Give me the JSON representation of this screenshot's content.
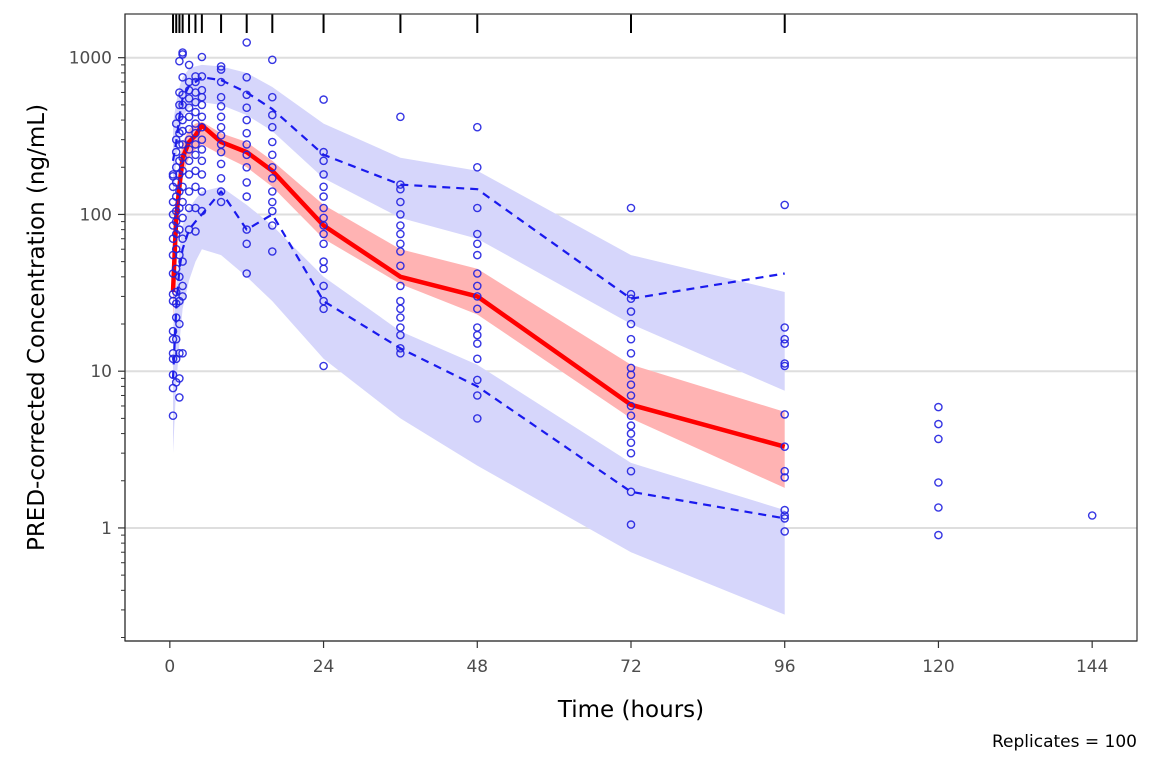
{
  "chart_data": {
    "type": "scatter",
    "title": "",
    "xlabel": "Time (hours)",
    "ylabel": "PRED-corrected Concentration (ng/mL)",
    "caption": "Replicates = 100",
    "x_scale": "linear",
    "y_scale": "log10",
    "xlim": [
      -7,
      151
    ],
    "ylim": [
      0.19,
      1900
    ],
    "x_ticks": [
      0,
      24,
      48,
      72,
      96,
      120,
      144
    ],
    "x_tick_labels": [
      "0",
      "24",
      "48",
      "72",
      "96",
      "120",
      "144"
    ],
    "y_ticks": [
      1,
      10,
      100,
      1000
    ],
    "y_tick_labels": [
      "1",
      "10",
      "100",
      "1000"
    ],
    "grid": "horizontal major lines only",
    "legend": "none",
    "colors": {
      "observed_points": "#2020e0",
      "median_line": "#ff0000",
      "median_band": "#ffb3b3",
      "percentile_lines": "#1a1aee",
      "percentile_bands": "#d6d6fb",
      "grid": "#dedede"
    },
    "bin_times": [
      0.5,
      1,
      1.5,
      2,
      3,
      4,
      5,
      8,
      12,
      16,
      24,
      36,
      48,
      72,
      96
    ],
    "observed_median": {
      "x": [
        0.5,
        1,
        1.5,
        2,
        3,
        4,
        5,
        8,
        12,
        16,
        24,
        36,
        48,
        72,
        96
      ],
      "y": [
        32,
        95,
        150,
        230,
        290,
        320,
        370,
        290,
        250,
        190,
        85,
        40,
        30,
        6.1,
        3.3
      ]
    },
    "observed_p95": {
      "x": [
        0.5,
        1,
        1.5,
        2,
        3,
        4,
        5,
        8,
        12,
        16,
        24,
        36,
        48,
        72,
        96
      ],
      "y": [
        220,
        290,
        420,
        550,
        660,
        700,
        750,
        720,
        600,
        470,
        240,
        155,
        145,
        29,
        42
      ]
    },
    "observed_p05": {
      "x": [
        0.5,
        1,
        1.5,
        2,
        3,
        4,
        5,
        8,
        12,
        16,
        24,
        36,
        48,
        72,
        96
      ],
      "y": [
        9,
        25,
        45,
        60,
        80,
        90,
        100,
        140,
        80,
        100,
        28,
        14,
        8,
        1.7,
        1.15
      ]
    },
    "sim_median_band": {
      "x": [
        0.5,
        1,
        1.5,
        2,
        3,
        4,
        5,
        8,
        12,
        16,
        24,
        36,
        48,
        72,
        96
      ],
      "lower": [
        20,
        65,
        120,
        180,
        230,
        260,
        280,
        240,
        200,
        150,
        70,
        36,
        23,
        5.0,
        1.8
      ],
      "upper": [
        45,
        130,
        210,
        290,
        350,
        380,
        390,
        330,
        290,
        220,
        115,
        60,
        45,
        11,
        5.5
      ]
    },
    "sim_p95_band": {
      "x": [
        0.5,
        1,
        1.5,
        2,
        3,
        4,
        5,
        8,
        12,
        16,
        24,
        36,
        48,
        72,
        96
      ],
      "lower": [
        120,
        220,
        320,
        420,
        480,
        500,
        520,
        500,
        430,
        340,
        170,
        95,
        70,
        20,
        7.5
      ],
      "upper": [
        380,
        520,
        650,
        750,
        850,
        880,
        900,
        880,
        800,
        650,
        380,
        230,
        190,
        55,
        32
      ]
    },
    "sim_p05_band": {
      "x": [
        0.5,
        1,
        1.5,
        2,
        3,
        4,
        5,
        8,
        12,
        16,
        24,
        36,
        48,
        72,
        96
      ],
      "lower": [
        3,
        8,
        15,
        25,
        38,
        50,
        60,
        55,
        40,
        28,
        12,
        5,
        2.5,
        0.7,
        0.28
      ],
      "upper": [
        18,
        35,
        60,
        85,
        110,
        125,
        140,
        150,
        115,
        85,
        40,
        18,
        11,
        2.6,
        1.3
      ]
    },
    "observed_points": [
      [
        0.5,
        5.2
      ],
      [
        0.5,
        7.8
      ],
      [
        0.5,
        9.5
      ],
      [
        0.5,
        12
      ],
      [
        0.5,
        13
      ],
      [
        0.5,
        16
      ],
      [
        0.5,
        18
      ],
      [
        0.5,
        28
      ],
      [
        0.5,
        31
      ],
      [
        0.5,
        42
      ],
      [
        0.5,
        55
      ],
      [
        0.5,
        70
      ],
      [
        0.5,
        85
      ],
      [
        0.5,
        100
      ],
      [
        0.5,
        120
      ],
      [
        0.5,
        150
      ],
      [
        0.5,
        175
      ],
      [
        0.5,
        180
      ],
      [
        1,
        8.5
      ],
      [
        1,
        12
      ],
      [
        1,
        16
      ],
      [
        1,
        22
      ],
      [
        1,
        27
      ],
      [
        1,
        32
      ],
      [
        1,
        45
      ],
      [
        1,
        60
      ],
      [
        1,
        75
      ],
      [
        1,
        90
      ],
      [
        1,
        105
      ],
      [
        1,
        130
      ],
      [
        1,
        160
      ],
      [
        1,
        200
      ],
      [
        1,
        250
      ],
      [
        1,
        300
      ],
      [
        1,
        380
      ],
      [
        1.5,
        6.8
      ],
      [
        1.5,
        9
      ],
      [
        1.5,
        13
      ],
      [
        1.5,
        20
      ],
      [
        1.5,
        28
      ],
      [
        1.5,
        40
      ],
      [
        1.5,
        55
      ],
      [
        1.5,
        80
      ],
      [
        1.5,
        110
      ],
      [
        1.5,
        140
      ],
      [
        1.5,
        180
      ],
      [
        1.5,
        220
      ],
      [
        1.5,
        280
      ],
      [
        1.5,
        330
      ],
      [
        1.5,
        420
      ],
      [
        1.5,
        500
      ],
      [
        1.5,
        600
      ],
      [
        1.5,
        950
      ],
      [
        2,
        13
      ],
      [
        2,
        30
      ],
      [
        2,
        35
      ],
      [
        2,
        50
      ],
      [
        2,
        70
      ],
      [
        2,
        95
      ],
      [
        2,
        120
      ],
      [
        2,
        150
      ],
      [
        2,
        190
      ],
      [
        2,
        230
      ],
      [
        2,
        280
      ],
      [
        2,
        340
      ],
      [
        2,
        400
      ],
      [
        2,
        500
      ],
      [
        2,
        580
      ],
      [
        2,
        750
      ],
      [
        2,
        1050
      ],
      [
        2,
        1080
      ],
      [
        3,
        80
      ],
      [
        3,
        110
      ],
      [
        3,
        140
      ],
      [
        3,
        180
      ],
      [
        3,
        220
      ],
      [
        3,
        260
      ],
      [
        3,
        300
      ],
      [
        3,
        350
      ],
      [
        3,
        420
      ],
      [
        3,
        480
      ],
      [
        3,
        550
      ],
      [
        3,
        620
      ],
      [
        3,
        700
      ],
      [
        3,
        900
      ],
      [
        4,
        78
      ],
      [
        4,
        110
      ],
      [
        4,
        150
      ],
      [
        4,
        190
      ],
      [
        4,
        240
      ],
      [
        4,
        280
      ],
      [
        4,
        330
      ],
      [
        4,
        380
      ],
      [
        4,
        450
      ],
      [
        4,
        520
      ],
      [
        4,
        600
      ],
      [
        4,
        700
      ],
      [
        4,
        760
      ],
      [
        5,
        105
      ],
      [
        5,
        140
      ],
      [
        5,
        180
      ],
      [
        5,
        220
      ],
      [
        5,
        260
      ],
      [
        5,
        300
      ],
      [
        5,
        360
      ],
      [
        5,
        420
      ],
      [
        5,
        500
      ],
      [
        5,
        560
      ],
      [
        5,
        620
      ],
      [
        5,
        760
      ],
      [
        5,
        1010
      ],
      [
        8,
        120
      ],
      [
        8,
        140
      ],
      [
        8,
        170
      ],
      [
        8,
        210
      ],
      [
        8,
        250
      ],
      [
        8,
        280
      ],
      [
        8,
        320
      ],
      [
        8,
        360
      ],
      [
        8,
        420
      ],
      [
        8,
        490
      ],
      [
        8,
        560
      ],
      [
        8,
        700
      ],
      [
        8,
        840
      ],
      [
        8,
        880
      ],
      [
        12,
        42
      ],
      [
        12,
        65
      ],
      [
        12,
        80
      ],
      [
        12,
        130
      ],
      [
        12,
        160
      ],
      [
        12,
        200
      ],
      [
        12,
        240
      ],
      [
        12,
        280
      ],
      [
        12,
        330
      ],
      [
        12,
        400
      ],
      [
        12,
        480
      ],
      [
        12,
        580
      ],
      [
        12,
        750
      ],
      [
        12,
        1250
      ],
      [
        16,
        58
      ],
      [
        16,
        85
      ],
      [
        16,
        105
      ],
      [
        16,
        120
      ],
      [
        16,
        140
      ],
      [
        16,
        170
      ],
      [
        16,
        200
      ],
      [
        16,
        240
      ],
      [
        16,
        290
      ],
      [
        16,
        360
      ],
      [
        16,
        430
      ],
      [
        16,
        560
      ],
      [
        16,
        970
      ],
      [
        24,
        10.8
      ],
      [
        24,
        25
      ],
      [
        24,
        28
      ],
      [
        24,
        35
      ],
      [
        24,
        45
      ],
      [
        24,
        50
      ],
      [
        24,
        65
      ],
      [
        24,
        75
      ],
      [
        24,
        85
      ],
      [
        24,
        95
      ],
      [
        24,
        110
      ],
      [
        24,
        130
      ],
      [
        24,
        150
      ],
      [
        24,
        180
      ],
      [
        24,
        220
      ],
      [
        24,
        250
      ],
      [
        24,
        540
      ],
      [
        36,
        13
      ],
      [
        36,
        14
      ],
      [
        36,
        17
      ],
      [
        36,
        19
      ],
      [
        36,
        22
      ],
      [
        36,
        25
      ],
      [
        36,
        28
      ],
      [
        36,
        35
      ],
      [
        36,
        47
      ],
      [
        36,
        58
      ],
      [
        36,
        65
      ],
      [
        36,
        75
      ],
      [
        36,
        85
      ],
      [
        36,
        100
      ],
      [
        36,
        120
      ],
      [
        36,
        145
      ],
      [
        36,
        155
      ],
      [
        36,
        420
      ],
      [
        48,
        5.0
      ],
      [
        48,
        7.0
      ],
      [
        48,
        8.8
      ],
      [
        48,
        12
      ],
      [
        48,
        15
      ],
      [
        48,
        17
      ],
      [
        48,
        19
      ],
      [
        48,
        25
      ],
      [
        48,
        30
      ],
      [
        48,
        35
      ],
      [
        48,
        42
      ],
      [
        48,
        55
      ],
      [
        48,
        65
      ],
      [
        48,
        75
      ],
      [
        48,
        110
      ],
      [
        48,
        200
      ],
      [
        48,
        360
      ],
      [
        72,
        1.05
      ],
      [
        72,
        1.7
      ],
      [
        72,
        2.3
      ],
      [
        72,
        3.0
      ],
      [
        72,
        3.5
      ],
      [
        72,
        4.0
      ],
      [
        72,
        4.5
      ],
      [
        72,
        5.2
      ],
      [
        72,
        6.0
      ],
      [
        72,
        7.0
      ],
      [
        72,
        8.2
      ],
      [
        72,
        9.5
      ],
      [
        72,
        10.5
      ],
      [
        72,
        13
      ],
      [
        72,
        16
      ],
      [
        72,
        20
      ],
      [
        72,
        24
      ],
      [
        72,
        29
      ],
      [
        72,
        31
      ],
      [
        72,
        110
      ],
      [
        96,
        0.95
      ],
      [
        96,
        1.15
      ],
      [
        96,
        1.2
      ],
      [
        96,
        1.3
      ],
      [
        96,
        2.1
      ],
      [
        96,
        2.3
      ],
      [
        96,
        3.3
      ],
      [
        96,
        5.3
      ],
      [
        96,
        10.8
      ],
      [
        96,
        11.2
      ],
      [
        96,
        15
      ],
      [
        96,
        16
      ],
      [
        96,
        19
      ],
      [
        96,
        115
      ],
      [
        120,
        0.9
      ],
      [
        120,
        1.35
      ],
      [
        120,
        1.95
      ],
      [
        120,
        3.7
      ],
      [
        120,
        4.6
      ],
      [
        120,
        5.9
      ],
      [
        144,
        1.2
      ]
    ]
  }
}
